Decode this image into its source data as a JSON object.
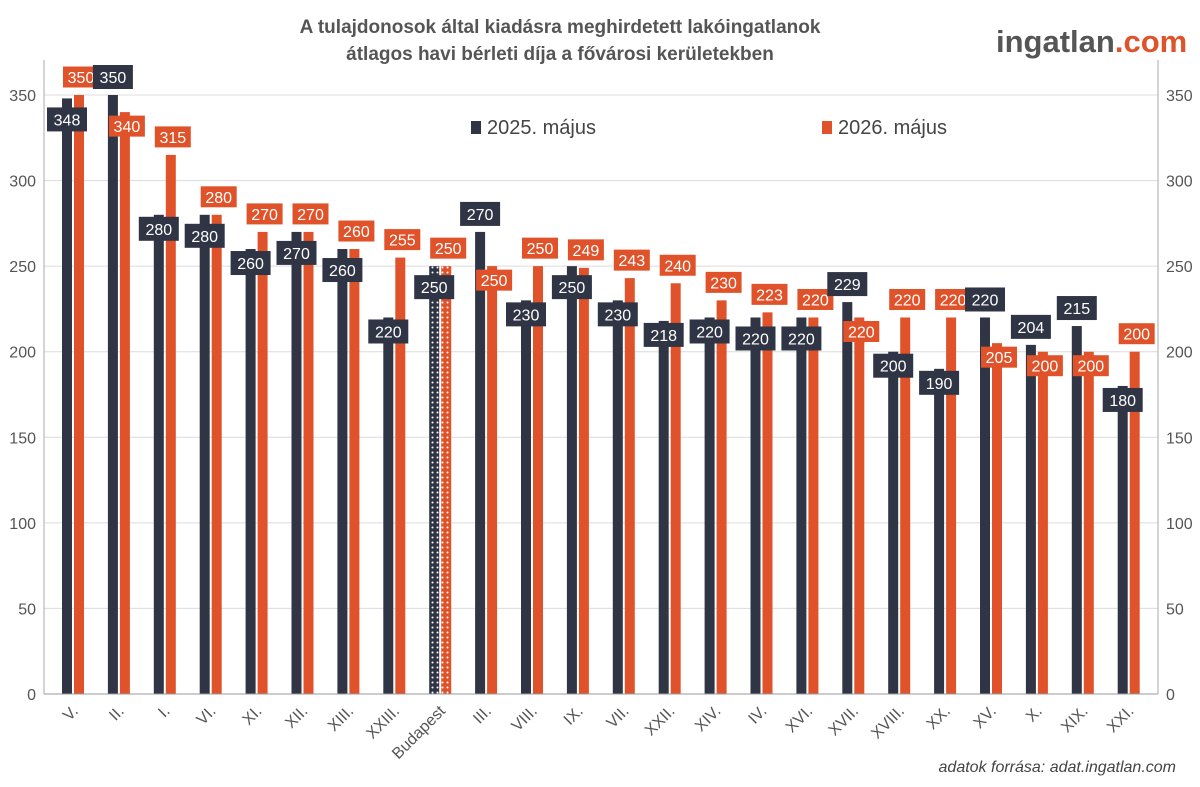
{
  "title_line1": "A tulajdonosok által kiadásra meghirdetett lakóingatlanok",
  "title_line2": "átlagos havi bérleti díja a fővárosi kerületekben",
  "brand": {
    "part1": "ingatlan",
    "part2": ".com"
  },
  "source": "adatok forrása: adat.ingatlan.com",
  "colors": {
    "series1": "#2f3545",
    "series2": "#e0532a",
    "grid": "#dcdcdc"
  },
  "chart_data": {
    "type": "bar",
    "categories": [
      "V.",
      "II.",
      "I.",
      "VI.",
      "XI.",
      "XII.",
      "XIII.",
      "XXIII.",
      "Budapest",
      "III.",
      "VIII.",
      "IX.",
      "VII.",
      "XXII.",
      "XIV.",
      "IV.",
      "XVI.",
      "XVII.",
      "XVIII.",
      "XX.",
      "XV.",
      "X.",
      "XIX.",
      "XXI."
    ],
    "series": [
      {
        "name": "2025. május",
        "values": [
          348,
          350,
          280,
          280,
          260,
          270,
          260,
          220,
          250,
          270,
          230,
          250,
          230,
          218,
          220,
          220,
          220,
          229,
          200,
          190,
          220,
          204,
          215,
          180
        ]
      },
      {
        "name": "2026. május",
        "values": [
          350,
          340,
          315,
          280,
          270,
          270,
          260,
          255,
          250,
          250,
          250,
          249,
          243,
          240,
          230,
          223,
          220,
          220,
          220,
          220,
          205,
          200,
          200,
          200
        ]
      }
    ],
    "ylim": [
      0,
      350
    ],
    "yticks": [
      0,
      50,
      100,
      150,
      200,
      250,
      300,
      350
    ],
    "highlight_category": "Budapest",
    "grid": true,
    "secondary_axis": true,
    "legend_position": "top"
  }
}
